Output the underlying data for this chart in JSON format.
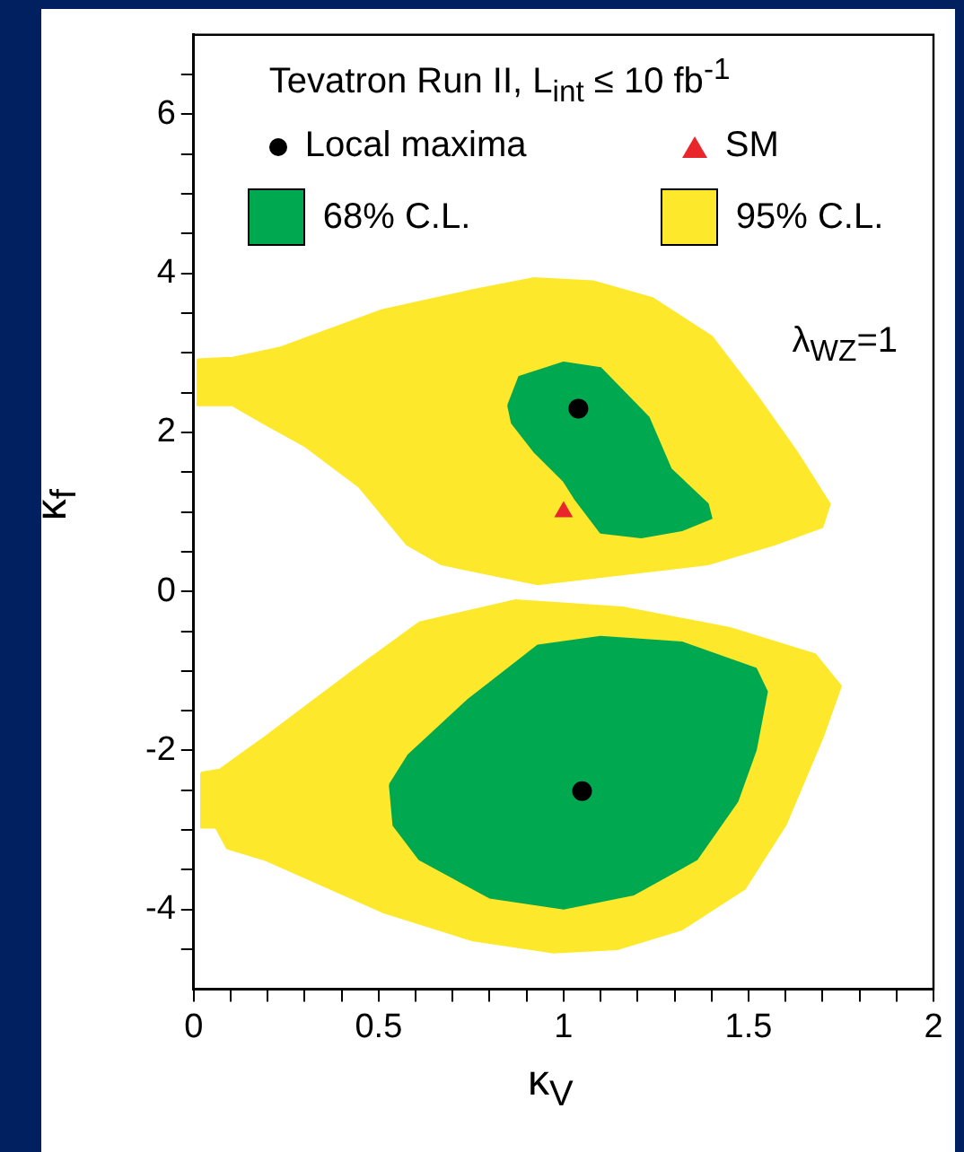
{
  "chart_data": {
    "type": "area",
    "legend_title": "Tevatron Run II, L$_{int}$ ≤ 10 fb$^{-1}$",
    "xlabel": "κ$_{V}$",
    "ylabel": "κ$_{f}$",
    "annotations": [
      "λ$_{WZ}$=1"
    ],
    "xlim": [
      0,
      2
    ],
    "ylim": [
      -5,
      7
    ],
    "xticks": [
      0,
      {
        "value": 0.1,
        "label": null
      },
      {
        "value": 0.2,
        "label": null
      },
      {
        "value": 0.3,
        "label": null
      },
      {
        "value": 0.4,
        "label": null
      },
      0.5,
      {
        "value": 0.6,
        "label": null
      },
      {
        "value": 0.7,
        "label": null
      },
      {
        "value": 0.8,
        "label": null
      },
      {
        "value": 0.9,
        "label": null
      },
      1,
      {
        "value": 1.1,
        "label": null
      },
      {
        "value": 1.2,
        "label": null
      },
      {
        "value": 1.3,
        "label": null
      },
      {
        "value": 1.4,
        "label": null
      },
      1.5,
      {
        "value": 1.6,
        "label": null
      },
      {
        "value": 1.7,
        "label": null
      },
      {
        "value": 1.8,
        "label": null
      },
      {
        "value": 1.9,
        "label": null
      },
      2
    ],
    "yticks": [
      {
        "value": -4.5,
        "label": null
      },
      -4,
      {
        "value": -3.5,
        "label": null
      },
      {
        "value": -3,
        "label": null
      },
      {
        "value": -2.5,
        "label": null
      },
      -2,
      {
        "value": -1.5,
        "label": null
      },
      {
        "value": -1,
        "label": null
      },
      {
        "value": -0.5,
        "label": null
      },
      0,
      {
        "value": 0.5,
        "label": null
      },
      {
        "value": 1,
        "label": null
      },
      {
        "value": 1.5,
        "label": null
      },
      2,
      {
        "value": 2.5,
        "label": null
      },
      {
        "value": 3,
        "label": null
      },
      {
        "value": 3.5,
        "label": null
      },
      4,
      {
        "value": 4.5,
        "label": null
      },
      {
        "value": 5,
        "label": null
      },
      {
        "value": 5.5,
        "label": null
      },
      6,
      {
        "value": 6.5,
        "label": null
      }
    ],
    "grid": false,
    "legend": "top",
    "series": [
      {
        "name": "Local maxima",
        "type": "scatter",
        "marker": "circle",
        "color": "#000000",
        "x": [
          1.04,
          1.05
        ],
        "values": [
          2.3,
          -2.51
        ]
      },
      {
        "name": "SM",
        "type": "scatter",
        "marker": "triangle",
        "color": "#e8262b",
        "x": [
          1
        ],
        "values": [
          1
        ]
      },
      {
        "name": "68% C.L.",
        "type": "area",
        "color": "#00a84f",
        "x": [
          0.85,
          0.88,
          1.0,
          1.1,
          1.23,
          1.29,
          1.39,
          1.4,
          1.32,
          1.21,
          1.1,
          1.03,
          1.0,
          0.92,
          0.86
        ],
        "values": [
          2.34,
          2.7,
          2.88,
          2.81,
          2.19,
          1.54,
          1.1,
          0.92,
          0.77,
          0.68,
          0.74,
          1.17,
          1.39,
          1.76,
          2.12
        ]
      },
      {
        "type": "area",
        "color": "#00a84f",
        "x": [
          0.53,
          0.58,
          0.74,
          0.93,
          1.1,
          1.32,
          1.52,
          1.55,
          1.52,
          1.47,
          1.36,
          1.19,
          1.0,
          0.8,
          0.61,
          0.54
        ],
        "values": [
          -2.43,
          -2.06,
          -1.37,
          -0.68,
          -0.57,
          -0.64,
          -0.97,
          -1.26,
          -1.99,
          -2.64,
          -3.37,
          -3.81,
          -3.99,
          -3.85,
          -3.37,
          -2.94
        ]
      },
      {
        "name": "95% C.L.",
        "type": "area",
        "color": "#fde82b",
        "x": [
          0.01,
          0.105,
          0.235,
          0.51,
          0.755,
          0.92,
          1.08,
          1.24,
          1.4,
          1.52,
          1.63,
          1.72,
          1.7,
          1.57,
          1.39,
          0.93,
          0.67,
          0.576,
          0.446,
          0.3,
          0.187,
          0.105,
          0.01
        ],
        "values": [
          2.92,
          2.94,
          3.07,
          3.54,
          3.79,
          3.94,
          3.9,
          3.69,
          3.21,
          2.48,
          1.76,
          1.1,
          0.81,
          0.59,
          0.34,
          0.09,
          0.34,
          0.59,
          1.32,
          1.83,
          2.12,
          2.34,
          2.34
        ]
      },
      {
        "type": "area",
        "color": "#fde82b",
        "x": [
          0.02,
          0.07,
          0.19,
          0.43,
          0.61,
          0.87,
          1.16,
          1.45,
          1.68,
          1.75,
          1.7,
          1.6,
          1.49,
          1.32,
          1.145,
          0.97,
          0.755,
          0.51,
          0.19,
          0.09,
          0.06,
          0.02
        ],
        "values": [
          -2.28,
          -2.24,
          -1.84,
          -1.0,
          -0.39,
          -0.11,
          -0.2,
          -0.46,
          -0.79,
          -1.19,
          -1.84,
          -2.94,
          -3.74,
          -4.25,
          -4.5,
          -4.54,
          -4.39,
          -4.03,
          -3.37,
          -3.23,
          -2.97,
          -2.97
        ]
      }
    ]
  }
}
